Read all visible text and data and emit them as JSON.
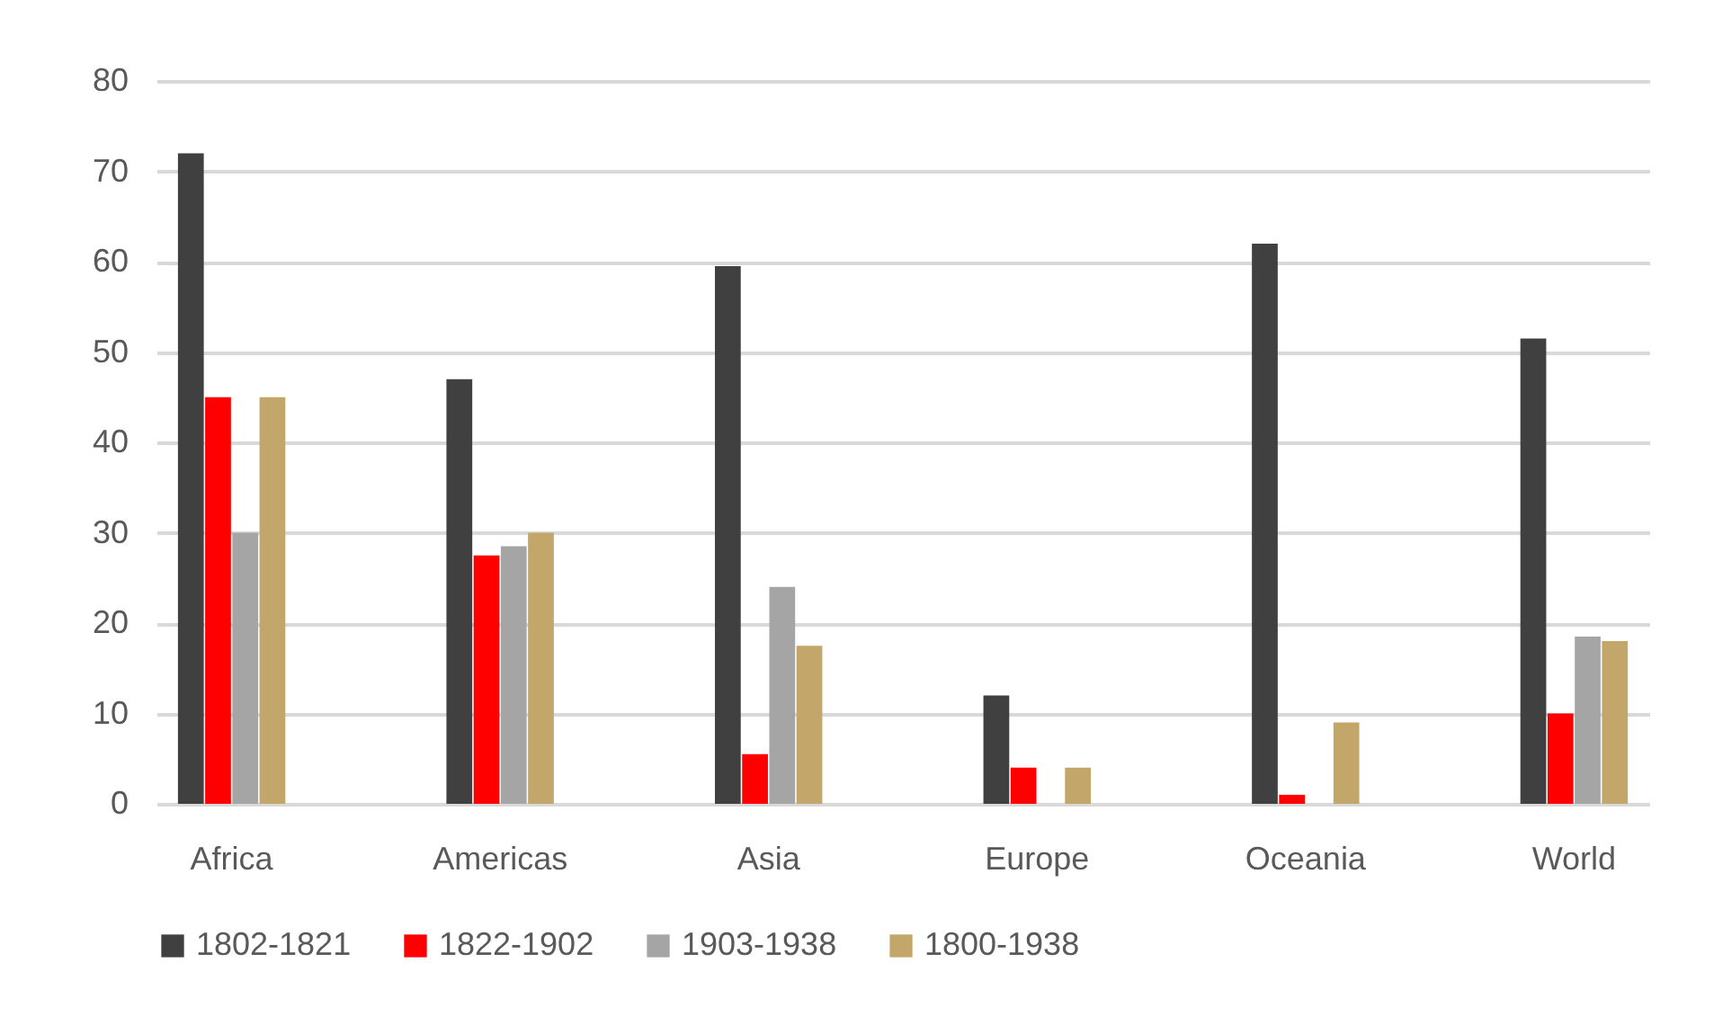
{
  "chart_data": {
    "type": "bar",
    "categories": [
      "Africa",
      null,
      "Americas",
      null,
      "Asia",
      null,
      "Europe",
      null,
      "Oceania",
      null,
      "World"
    ],
    "series": [
      {
        "name": "1802-1821",
        "color": "#404040",
        "values": [
          72,
          0,
          47,
          0,
          59.5,
          0,
          12,
          0,
          62,
          0,
          51.5
        ]
      },
      {
        "name": "1822-1902",
        "color": "#ff0000",
        "values": [
          45,
          0,
          27.5,
          0,
          5.5,
          0,
          4,
          0,
          1,
          0,
          10
        ]
      },
      {
        "name": "1903-1938",
        "color": "#a5a5a5",
        "values": [
          30,
          0,
          28.5,
          0,
          24,
          0,
          0,
          0,
          0,
          0,
          18.5
        ]
      },
      {
        "name": "1800-1938",
        "color": "#c2a66a",
        "values": [
          45,
          0,
          30,
          0,
          17.5,
          0,
          4,
          0,
          9,
          0,
          18
        ]
      }
    ],
    "ylim": [
      0,
      80
    ],
    "yticks": [
      0,
      10,
      20,
      30,
      40,
      50,
      60,
      70,
      80
    ],
    "grid": "y",
    "legend": "bottom"
  }
}
